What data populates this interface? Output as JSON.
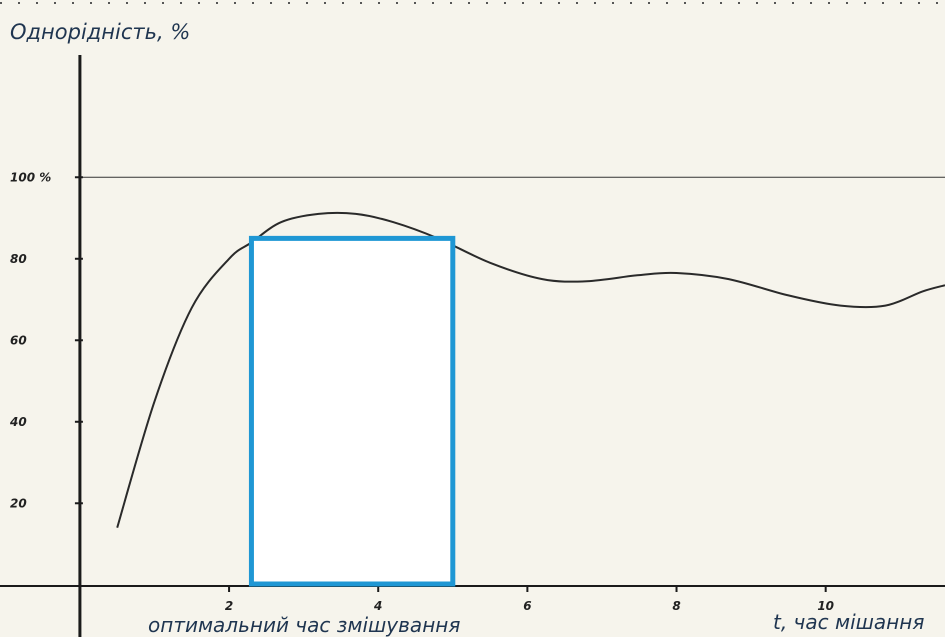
{
  "chart_data": {
    "type": "line",
    "ylabel": "Однорідність, %",
    "xlabel": "t, час мішання",
    "annotation": "оптимальний час змішування",
    "xlim": [
      -0.2,
      11.6
    ],
    "ylim": [
      -0.3,
      130
    ],
    "x_ticks": [
      {
        "value": 2,
        "label": "2"
      },
      {
        "value": 4,
        "label": "4"
      },
      {
        "value": 6,
        "label": "6"
      },
      {
        "value": 8,
        "label": "8"
      },
      {
        "value": 10,
        "label": "10"
      }
    ],
    "y_ticks": [
      {
        "value": 20,
        "label": "20"
      },
      {
        "value": 40,
        "label": "40"
      },
      {
        "value": 60,
        "label": "60"
      },
      {
        "value": 80,
        "label": "80"
      },
      {
        "value": 100,
        "label": "100 %"
      }
    ],
    "reference_line": {
      "y": 100
    },
    "highlight": {
      "x_start": 2.3,
      "x_end": 5.0,
      "y_top": 85
    },
    "series": [
      {
        "values": [
          {
            "x": 0.5,
            "y": 14
          },
          {
            "x": 1.0,
            "y": 45
          },
          {
            "x": 1.5,
            "y": 68
          },
          {
            "x": 2.0,
            "y": 80
          },
          {
            "x": 2.3,
            "y": 84
          },
          {
            "x": 2.7,
            "y": 89
          },
          {
            "x": 3.2,
            "y": 91
          },
          {
            "x": 3.7,
            "y": 91
          },
          {
            "x": 4.2,
            "y": 89
          },
          {
            "x": 4.8,
            "y": 85
          },
          {
            "x": 5.5,
            "y": 79
          },
          {
            "x": 6.2,
            "y": 75
          },
          {
            "x": 6.8,
            "y": 74.5
          },
          {
            "x": 7.5,
            "y": 76
          },
          {
            "x": 8.0,
            "y": 76.5
          },
          {
            "x": 8.7,
            "y": 75
          },
          {
            "x": 9.5,
            "y": 71
          },
          {
            "x": 10.2,
            "y": 68.5
          },
          {
            "x": 10.8,
            "y": 68.5
          },
          {
            "x": 11.3,
            "y": 72
          },
          {
            "x": 11.6,
            "y": 73.5
          }
        ],
        "color": "#2a2a2a"
      }
    ],
    "colors": {
      "highlight": "#1f97d4",
      "axis": "#1a1a1a",
      "background": "#f6f4ec"
    }
  }
}
